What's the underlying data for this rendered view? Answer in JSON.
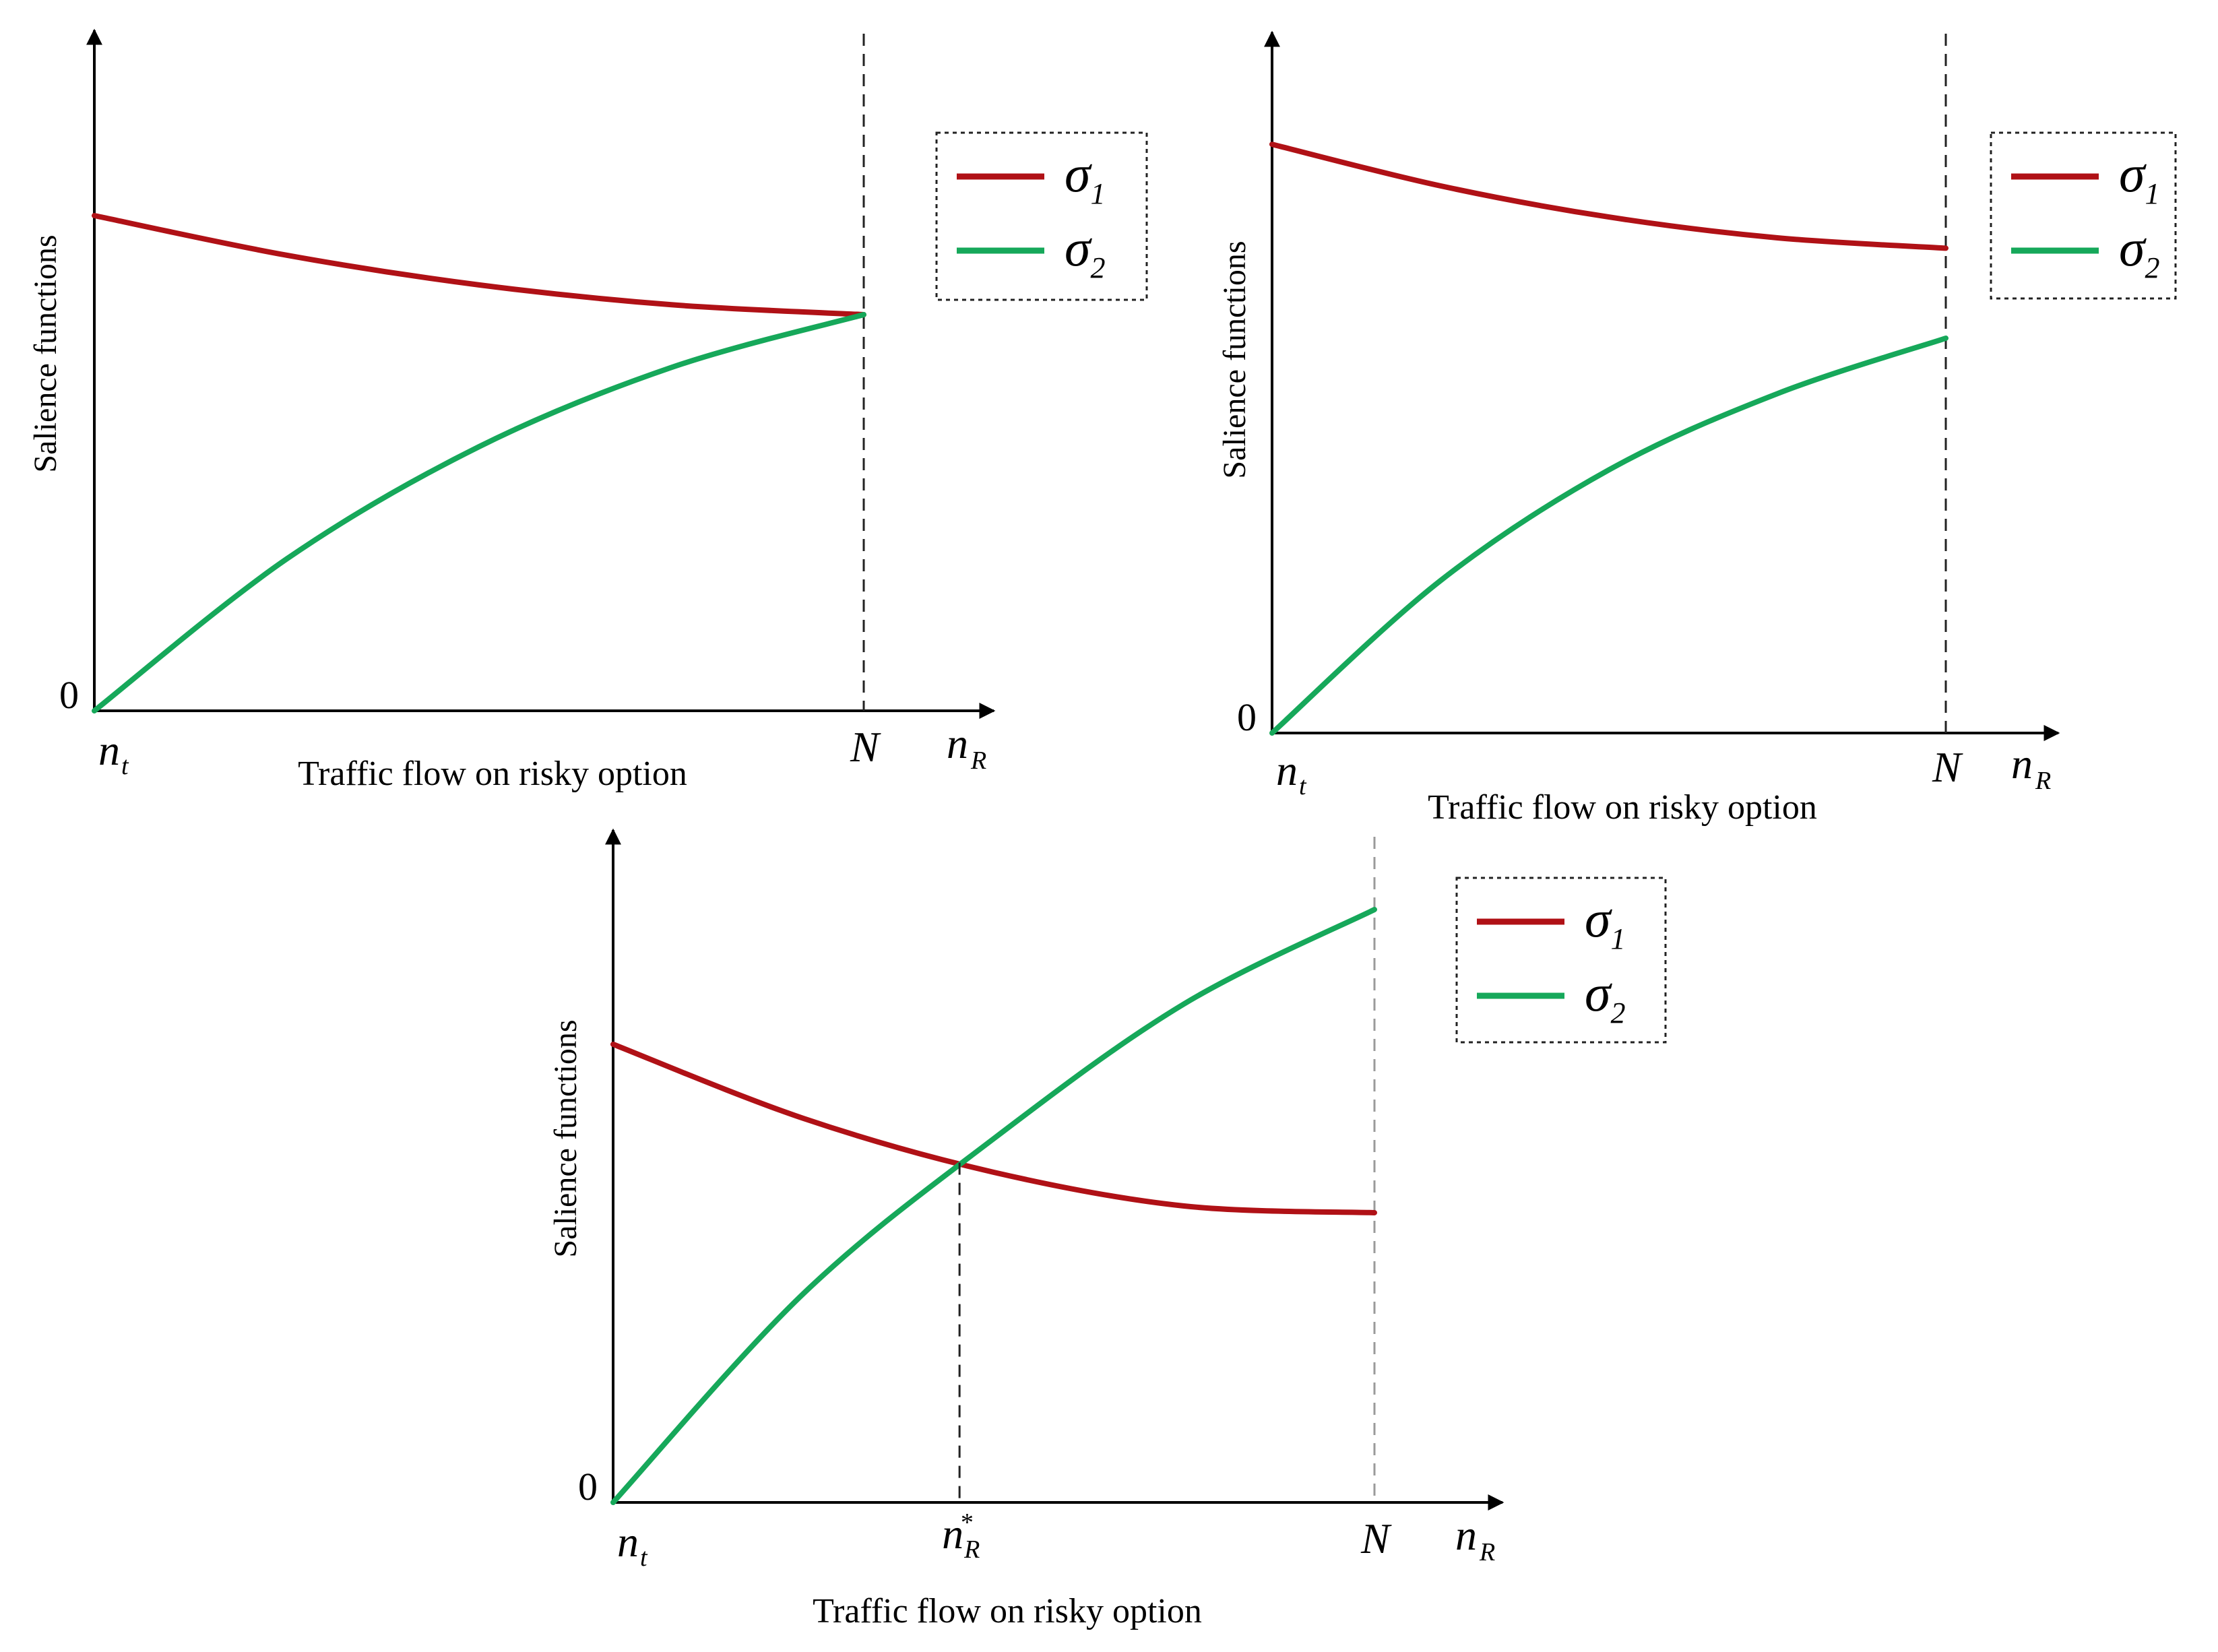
{
  "colors": {
    "sigma1": "#b01116",
    "sigma2": "#16a85a"
  },
  "chart_data": [
    {
      "type": "line",
      "panel": "top-left",
      "ylabel": "Salience functions",
      "xlabel": "Traffic flow on risky option",
      "y_origin_label": "0",
      "x_start_label": {
        "main": "n",
        "sub": "t"
      },
      "x_end_label": "N",
      "x_axis_symbol": {
        "main": "n",
        "sub": "R"
      },
      "legend": [
        {
          "main": "σ",
          "sub": "1"
        },
        {
          "main": "σ",
          "sub": "2"
        }
      ],
      "legend_position": "top-right",
      "xlim": [
        0,
        1
      ],
      "ylim": [
        0,
        1
      ],
      "series": [
        {
          "name": "σ1",
          "x": [
            0,
            0.25,
            0.5,
            0.75,
            1
          ],
          "values": [
            0.75,
            0.69,
            0.645,
            0.615,
            0.6
          ]
        },
        {
          "name": "σ2",
          "x": [
            0,
            0.25,
            0.5,
            0.75,
            1
          ],
          "values": [
            0,
            0.23,
            0.4,
            0.52,
            0.6
          ]
        }
      ]
    },
    {
      "type": "line",
      "panel": "top-right",
      "ylabel": "Salience functions",
      "xlabel": "Traffic flow on risky option",
      "y_origin_label": "0",
      "x_start_label": {
        "main": "n",
        "sub": "t"
      },
      "x_end_label": "N",
      "x_axis_symbol": {
        "main": "n",
        "sub": "R"
      },
      "legend": [
        {
          "main": "σ",
          "sub": "1"
        },
        {
          "main": "σ",
          "sub": "2"
        }
      ],
      "legend_position": "top-right",
      "xlim": [
        0,
        1
      ],
      "ylim": [
        0,
        1
      ],
      "series": [
        {
          "name": "σ1",
          "x": [
            0,
            0.25,
            0.5,
            0.75,
            1
          ],
          "values": [
            0.85,
            0.79,
            0.745,
            0.715,
            0.7
          ]
        },
        {
          "name": "σ2",
          "x": [
            0,
            0.25,
            0.5,
            0.75,
            1
          ],
          "values": [
            0,
            0.22,
            0.38,
            0.49,
            0.57
          ]
        }
      ]
    },
    {
      "type": "line",
      "panel": "bottom",
      "ylabel": "Salience functions",
      "xlabel": "Traffic flow on risky option",
      "y_origin_label": "0",
      "x_start_label": {
        "main": "n",
        "sub": "t"
      },
      "x_end_label": "N",
      "x_axis_symbol": {
        "main": "n",
        "sub": "R"
      },
      "intersection_label": {
        "main": "n",
        "sub": "R",
        "sup": "*"
      },
      "intersection_x": 0.455,
      "legend": [
        {
          "main": "σ",
          "sub": "1"
        },
        {
          "main": "σ",
          "sub": "2"
        }
      ],
      "legend_position": "top-right",
      "xlim": [
        0,
        1
      ],
      "ylim": [
        0,
        1
      ],
      "series": [
        {
          "name": "σ1",
          "x": [
            0,
            0.25,
            0.5,
            0.75,
            1
          ],
          "values": [
            0.68,
            0.57,
            0.49,
            0.44,
            0.43
          ]
        },
        {
          "name": "σ2",
          "x": [
            0,
            0.25,
            0.5,
            0.75,
            1
          ],
          "values": [
            0,
            0.31,
            0.54,
            0.74,
            0.88
          ]
        }
      ]
    }
  ]
}
